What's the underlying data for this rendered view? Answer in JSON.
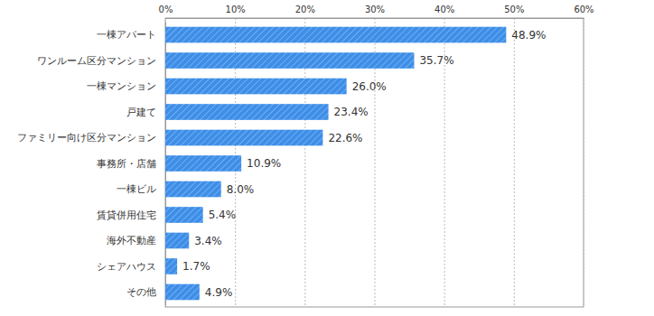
{
  "chart_data": {
    "type": "bar",
    "orientation": "horizontal",
    "categories": [
      "一棟アパート",
      "ワンルーム区分マンション",
      "一棟マンション",
      "戸建て",
      "ファミリー向け区分マンション",
      "事務所・店舗",
      "一棟ビル",
      "賃貸併用住宅",
      "海外不動産",
      "シェアハウス",
      "その他"
    ],
    "values": [
      48.9,
      35.7,
      26.0,
      23.4,
      22.6,
      10.9,
      8.0,
      5.4,
      3.4,
      1.7,
      4.9
    ],
    "value_labels": [
      "48.9%",
      "35.7%",
      "26.0%",
      "23.4%",
      "22.6%",
      "10.9%",
      "8.0%",
      "5.4%",
      "3.4%",
      "1.7%",
      "4.9%"
    ],
    "data_labels": true,
    "color": "#3d8ee8",
    "xlim": [
      0,
      60
    ],
    "xticks": [
      {
        "value": 0,
        "label": "0%"
      },
      {
        "value": 10,
        "label": "10%"
      },
      {
        "value": 20,
        "label": "20%"
      },
      {
        "value": 30,
        "label": "30%"
      },
      {
        "value": 40,
        "label": "40%"
      },
      {
        "value": 50,
        "label": "50%"
      },
      {
        "value": 60,
        "label": "60%"
      }
    ],
    "grid": true
  }
}
